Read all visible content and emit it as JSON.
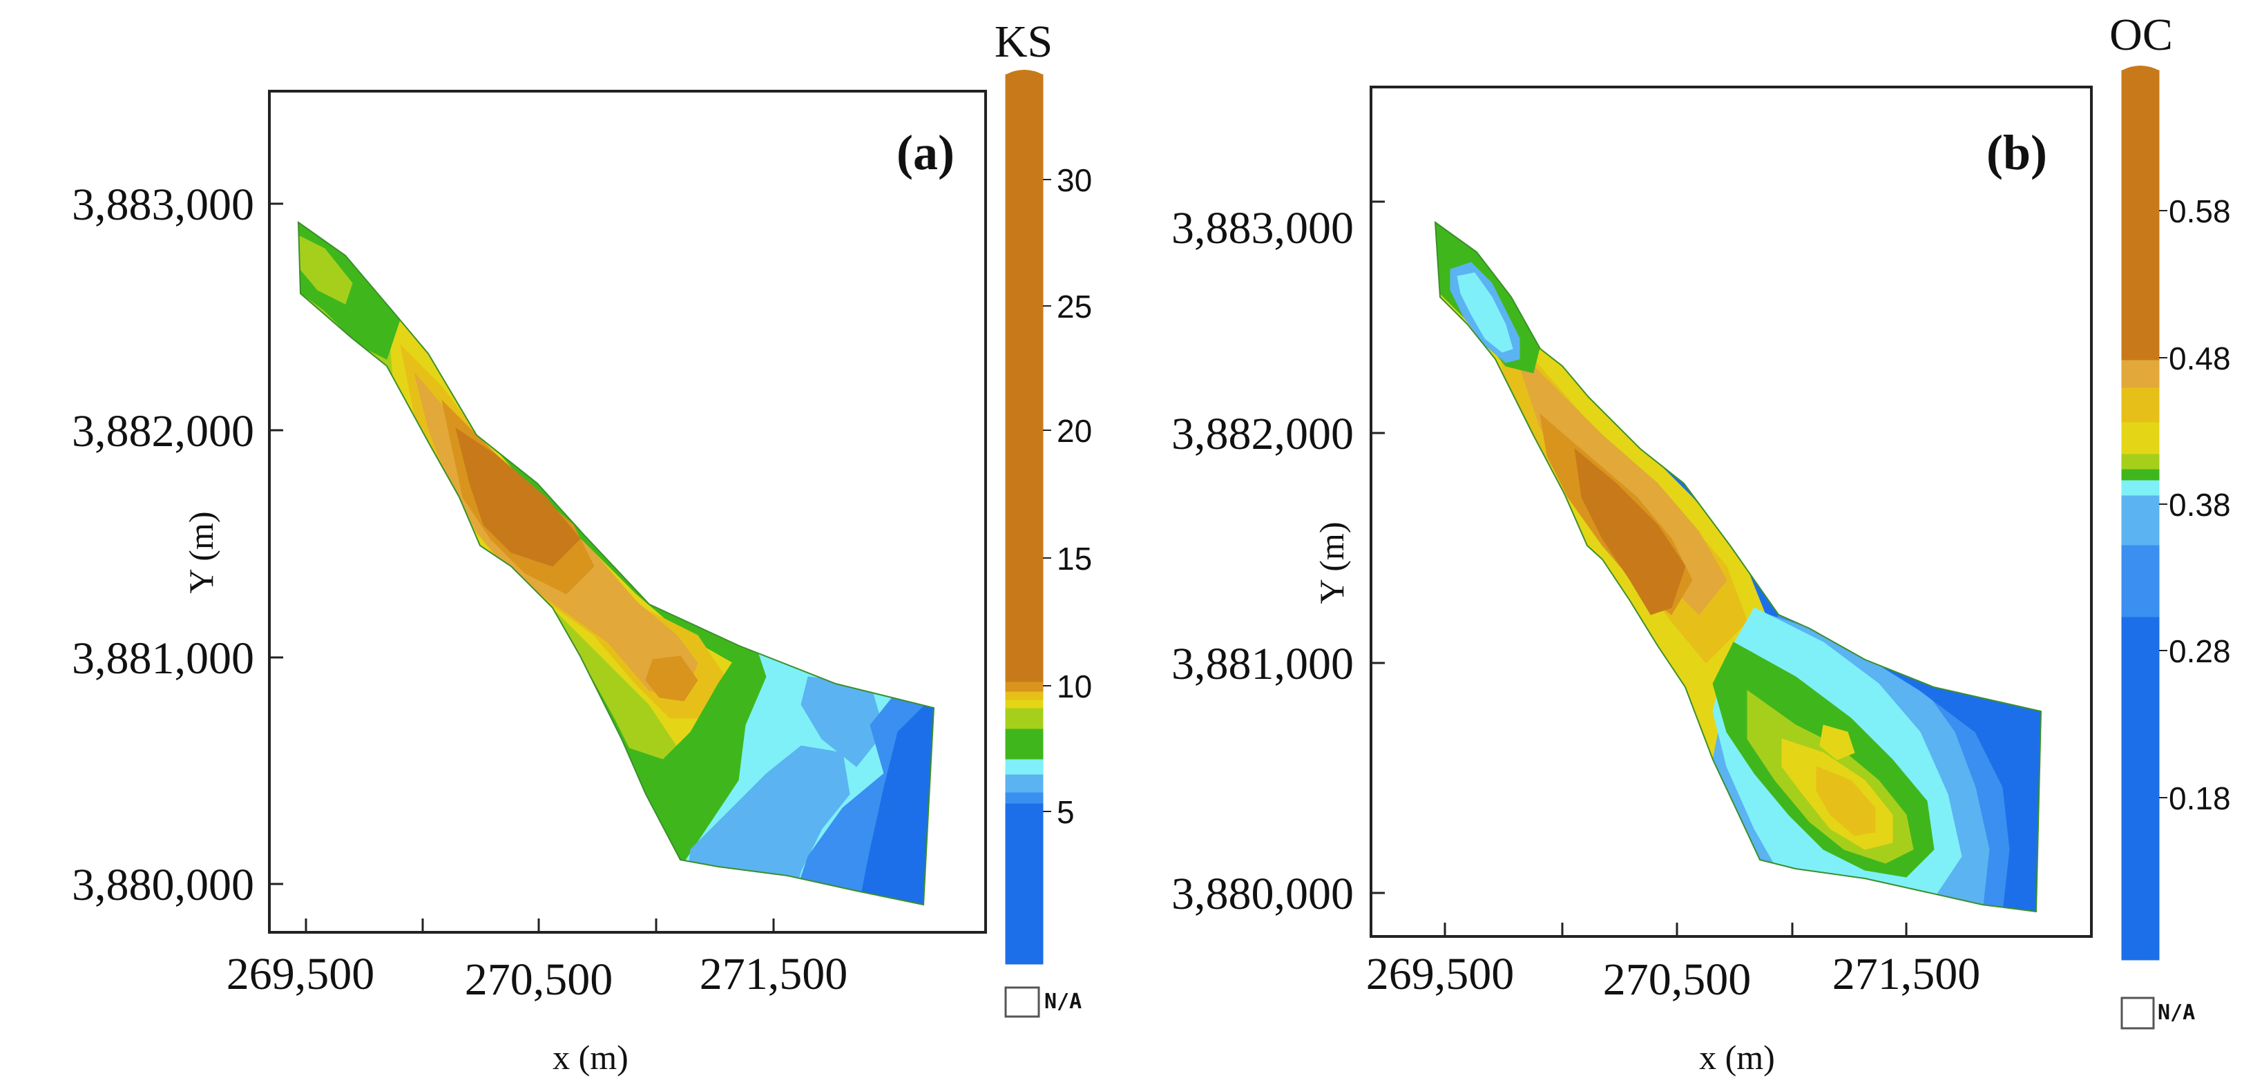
{
  "colors": {
    "dark_orange": "#c87a1a",
    "orange": "#d9941e",
    "light_orange": "#e2a83a",
    "yellow_orange": "#e6c018",
    "yellow": "#e4d616",
    "lime": "#a6cf1c",
    "green": "#3fb71c",
    "cyan": "#7ff0f7",
    "light_blue": "#5bb3f2",
    "mid_blue": "#3b8ff0",
    "blue": "#1d6fe9",
    "frame": "#222222"
  },
  "panels": [
    {
      "id": "a",
      "tag": "(a)",
      "variable": "KS",
      "xlabel": "x (m)",
      "ylabel": "Y (m)",
      "x_ticks": [
        "269,500",
        "270,500",
        "271,500"
      ],
      "y_ticks": [
        "3,883,000",
        "3,882,000",
        "3,881,000",
        "3,880,000"
      ],
      "colorbar_ticks": [
        "30",
        "25",
        "20",
        "15",
        "10",
        "5"
      ],
      "na_label": "N/A"
    },
    {
      "id": "b",
      "tag": "(b)",
      "variable": "OC",
      "xlabel": "x (m)",
      "ylabel": "Y (m)",
      "x_ticks": [
        "269,500",
        "270,500",
        "271,500"
      ],
      "y_ticks": [
        "3,883,000",
        "3,882,000",
        "3,881,000",
        "3,880,000"
      ],
      "colorbar_ticks": [
        "0.58",
        "0.48",
        "0.38",
        "0.28",
        "0.18"
      ],
      "na_label": "N/A"
    }
  ]
}
